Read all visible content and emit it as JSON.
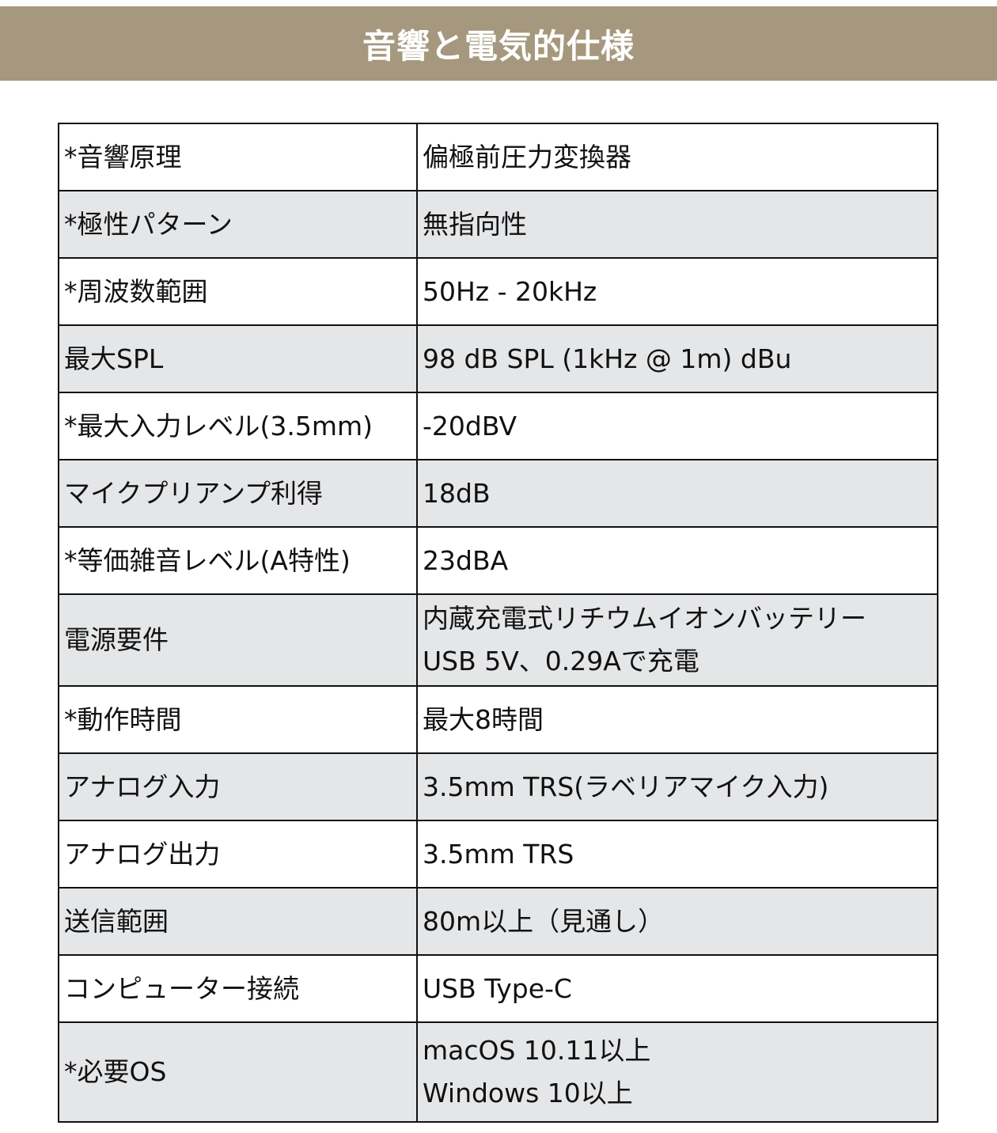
{
  "title": "音響と電気的仕様",
  "rows": [
    {
      "label": "*音響原理",
      "value": [
        "偏極前圧力変換器"
      ]
    },
    {
      "label": "*極性パターン",
      "value": [
        "無指向性"
      ]
    },
    {
      "label": "*周波数範囲",
      "value": [
        "50Hz - 20kHz"
      ]
    },
    {
      "label": "最大SPL",
      "value": [
        "98 dB SPL (1kHz @ 1m) dBu"
      ]
    },
    {
      "label": "*最大入力レベル(3.5mm)",
      "value": [
        "-20dBV"
      ]
    },
    {
      "label": "マイクプリアンプ利得",
      "value": [
        "18dB"
      ]
    },
    {
      "label": "*等価雑音レベル(A特性)",
      "value": [
        "23dBA"
      ]
    },
    {
      "label": "電源要件",
      "value": [
        "内蔵充電式リチウムイオンバッテリー",
        "USB 5V、0.29Aで充電"
      ]
    },
    {
      "label": "*動作時間",
      "value": [
        "最大8時間"
      ]
    },
    {
      "label": "アナログ入力",
      "value": [
        "3.5mm TRS(ラベリアマイク入力)"
      ]
    },
    {
      "label": "アナログ出力",
      "value": [
        "3.5mm TRS"
      ]
    },
    {
      "label": "送信範囲",
      "value": [
        "80m以上（見通し）"
      ]
    },
    {
      "label": "コンピューター接続",
      "value": [
        "USB Type-C"
      ]
    },
    {
      "label": "*必要OS",
      "value": [
        "macOS 10.11以上",
        "Windows 10以上"
      ]
    }
  ],
  "colors": {
    "banner": "#a5987e",
    "alt_row": "#e5e6e8"
  }
}
